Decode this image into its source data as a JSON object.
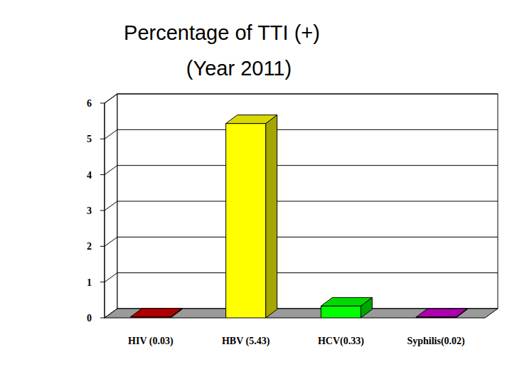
{
  "chart_data": {
    "type": "bar",
    "title": "Percentage of TTI (+)",
    "subtitle": "(Year 2011)",
    "categories": [
      "HIV (0.03)",
      "HBV (5.43)",
      "HCV(0.33)",
      "Syphilis(0.02)"
    ],
    "values": [
      0.03,
      5.43,
      0.33,
      0.02
    ],
    "colors": [
      "#cc0000",
      "#ffff00",
      "#00ff00",
      "#cc00cc"
    ],
    "ylim": [
      0,
      6
    ],
    "yticks": [
      0,
      1,
      2,
      3,
      4,
      5,
      6
    ],
    "grid": true
  }
}
